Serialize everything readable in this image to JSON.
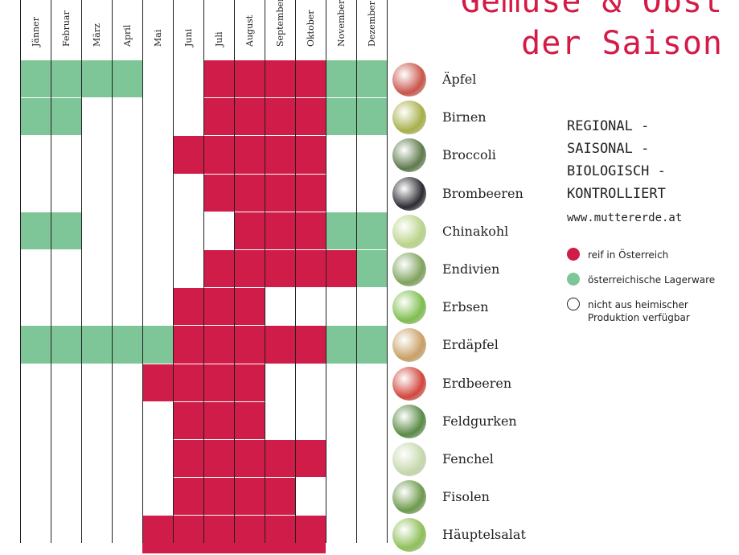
{
  "title": {
    "line1": "Gemüse & Obst",
    "line2": "der Saison"
  },
  "months": [
    "Jänner",
    "Februar",
    "März",
    "April",
    "Mai",
    "Juni",
    "Juli",
    "August",
    "September",
    "Oktober",
    "November",
    "Dezember"
  ],
  "rows": [
    {
      "name": "Äpfel",
      "icon": "apple-icon",
      "icon_color": "#c9554b",
      "status": [
        "G",
        "G",
        "G",
        "G",
        "",
        "",
        "R",
        "R",
        "R",
        "R",
        "G",
        "G"
      ]
    },
    {
      "name": "Birnen",
      "icon": "pear-icon",
      "icon_color": "#a7b04a",
      "status": [
        "G",
        "G",
        "",
        "",
        "",
        "",
        "R",
        "R",
        "R",
        "R",
        "G",
        "G"
      ]
    },
    {
      "name": "Broccoli",
      "icon": "broccoli-icon",
      "icon_color": "#5e7a4c",
      "status": [
        "",
        "",
        "",
        "",
        "",
        "R",
        "R",
        "R",
        "R",
        "R",
        "",
        ""
      ]
    },
    {
      "name": "Brombeeren",
      "icon": "blackberry-icon",
      "icon_color": "#2b2b33",
      "status": [
        "",
        "",
        "",
        "",
        "",
        "",
        "R",
        "R",
        "R",
        "R",
        "",
        ""
      ]
    },
    {
      "name": "Chinakohl",
      "icon": "chinese-cabbage-icon",
      "icon_color": "#b9d48a",
      "status": [
        "G",
        "G",
        "",
        "",
        "",
        "",
        "",
        "R",
        "R",
        "R",
        "G",
        "G"
      ]
    },
    {
      "name": "Endivien",
      "icon": "endive-icon",
      "icon_color": "#7fa35e",
      "status": [
        "",
        "",
        "",
        "",
        "",
        "",
        "R",
        "R",
        "R",
        "R",
        "R",
        "G"
      ]
    },
    {
      "name": "Erbsen",
      "icon": "peas-icon",
      "icon_color": "#7ebe4f",
      "status": [
        "",
        "",
        "",
        "",
        "",
        "R",
        "R",
        "R",
        "",
        "",
        "",
        ""
      ]
    },
    {
      "name": "Erdäpfel",
      "icon": "potato-icon",
      "icon_color": "#c9a067",
      "status": [
        "G",
        "G",
        "G",
        "G",
        "G",
        "R",
        "R",
        "R",
        "R",
        "R",
        "G",
        "G"
      ]
    },
    {
      "name": "Erdbeeren",
      "icon": "strawberry-icon",
      "icon_color": "#d2463c",
      "status": [
        "",
        "",
        "",
        "",
        "R",
        "R",
        "R",
        "R",
        "",
        "",
        "",
        ""
      ]
    },
    {
      "name": "Feldgurken",
      "icon": "cucumber-icon",
      "icon_color": "#5a8a45",
      "status": [
        "",
        "",
        "",
        "",
        "",
        "R",
        "R",
        "R",
        "",
        "",
        "",
        ""
      ]
    },
    {
      "name": "Fenchel",
      "icon": "fennel-icon",
      "icon_color": "#c6d8ad",
      "status": [
        "",
        "",
        "",
        "",
        "",
        "R",
        "R",
        "R",
        "R",
        "R",
        "",
        ""
      ]
    },
    {
      "name": "Fisolen",
      "icon": "beans-icon",
      "icon_color": "#6d9a4c",
      "status": [
        "",
        "",
        "",
        "",
        "",
        "R",
        "R",
        "R",
        "R",
        "",
        "",
        ""
      ]
    },
    {
      "name": "Häuptelsalat",
      "icon": "lettuce-icon",
      "icon_color": "#8fbf5a",
      "status": [
        "",
        "",
        "",
        "",
        "R",
        "R",
        "R",
        "R",
        "R",
        "R",
        "",
        ""
      ]
    }
  ],
  "tagline": "REGIONAL -\nSAISONAL -\nBIOLOGISCH -\nKONTROLLIERT",
  "url": "www.muttererde.at",
  "legend": [
    {
      "label": "reif in Österreich",
      "color": "#cf1c48",
      "icon": "red-dot-icon"
    },
    {
      "label": "österreichische Lagerware",
      "color": "#7ec598",
      "icon": "green-dot-icon"
    },
    {
      "label": "nicht aus heimischer\nProduktion verfügbar",
      "color": "#ffffff",
      "icon": "empty-dot-icon"
    }
  ],
  "colors": {
    "red": "#cf1c48",
    "green": "#7ec598",
    "accent": "#d41a45"
  }
}
